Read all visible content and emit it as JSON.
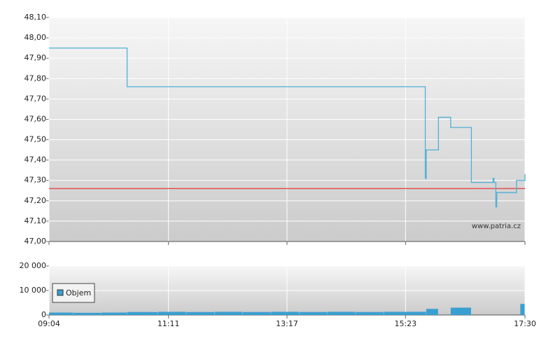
{
  "chart_data": [
    {
      "type": "line",
      "x": [
        "09:04",
        "10:27",
        "15:44",
        "15:45",
        "15:58",
        "16:11",
        "16:33",
        "16:56",
        "16:57",
        "16:59",
        "17:00",
        "17:21",
        "17:30"
      ],
      "series": [
        {
          "color": "#4fb0d6",
          "values": [
            47.95,
            47.76,
            47.31,
            47.45,
            47.61,
            47.56,
            47.29,
            47.31,
            47.29,
            47.17,
            47.24,
            47.3,
            47.33
          ]
        }
      ],
      "reference_line": {
        "value": 47.26,
        "color": "#e05050"
      },
      "xlim": [
        "09:04",
        "17:30"
      ],
      "xticks": [
        "09:04",
        "11:11",
        "13:17",
        "15:23",
        "17:30"
      ],
      "ylim": [
        47.0,
        48.1
      ],
      "yticks": [
        {
          "value": 47.0,
          "label": "47,00"
        },
        {
          "value": 47.1,
          "label": "47,10"
        },
        {
          "value": 47.2,
          "label": "47,20"
        },
        {
          "value": 47.3,
          "label": "47,30"
        },
        {
          "value": 47.4,
          "label": "47,40"
        },
        {
          "value": 47.5,
          "label": "47,50"
        },
        {
          "value": 47.6,
          "label": "47,60"
        },
        {
          "value": 47.7,
          "label": "47,70"
        },
        {
          "value": 47.8,
          "label": "47,80"
        },
        {
          "value": 47.9,
          "label": "47,90"
        },
        {
          "value": 48.0,
          "label": "48,00"
        },
        {
          "value": 48.1,
          "label": "48,10"
        }
      ],
      "grid": true,
      "watermark": "www.patria.cz"
    },
    {
      "type": "bar",
      "x": [
        "09:04",
        "09:30",
        "10:00",
        "10:27",
        "11:00",
        "11:30",
        "12:00",
        "12:30",
        "13:00",
        "13:30",
        "14:00",
        "14:30",
        "15:00",
        "15:45",
        "15:58",
        "16:11",
        "16:33",
        "17:25"
      ],
      "series": [
        {
          "name": "Objem",
          "color": "#3a9fd0",
          "values": [
            1000,
            900,
            1000,
            1200,
            1300,
            1200,
            1300,
            1200,
            1300,
            1200,
            1300,
            1200,
            1300,
            2500,
            0,
            3000,
            0,
            4500
          ]
        }
      ],
      "xlim": [
        "09:04",
        "17:30"
      ],
      "xticks": [
        "09:04",
        "11:11",
        "13:17",
        "15:23",
        "17:30"
      ],
      "ylim": [
        0,
        20000
      ],
      "yticks": [
        0,
        {
          "value": 10000,
          "label": "10 000"
        },
        {
          "value": 20000,
          "label": "20 000"
        }
      ],
      "grid": true,
      "legend": "upper left"
    }
  ]
}
